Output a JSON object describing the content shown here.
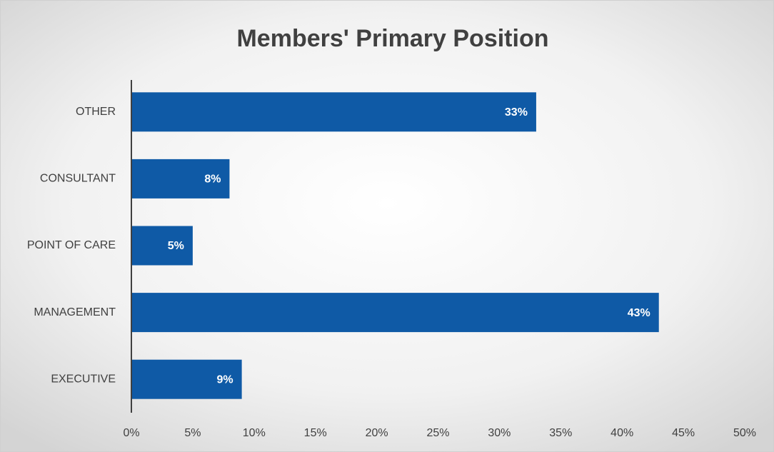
{
  "chart_data": {
    "type": "bar",
    "orientation": "horizontal",
    "title": "Members' Primary Position",
    "categories": [
      "OTHER",
      "CONSULTANT",
      "POINT OF CARE",
      "MANAGEMENT",
      "EXECUTIVE"
    ],
    "values": [
      33,
      8,
      5,
      43,
      9
    ],
    "value_labels": [
      "33%",
      "8%",
      "5%",
      "43%",
      "9%"
    ],
    "color": "#0f5aa6",
    "xlim": [
      0,
      50
    ],
    "xticks": [
      {
        "value": 0,
        "label": "0%"
      },
      {
        "value": 5,
        "label": "5%"
      },
      {
        "value": 10,
        "label": "10%"
      },
      {
        "value": 15,
        "label": "15%"
      },
      {
        "value": 20,
        "label": "20%"
      },
      {
        "value": 25,
        "label": "25%"
      },
      {
        "value": 30,
        "label": "30%"
      },
      {
        "value": 35,
        "label": "35%"
      },
      {
        "value": 40,
        "label": "40%"
      },
      {
        "value": 45,
        "label": "45%"
      },
      {
        "value": 50,
        "label": "50%"
      }
    ],
    "grid": false
  }
}
